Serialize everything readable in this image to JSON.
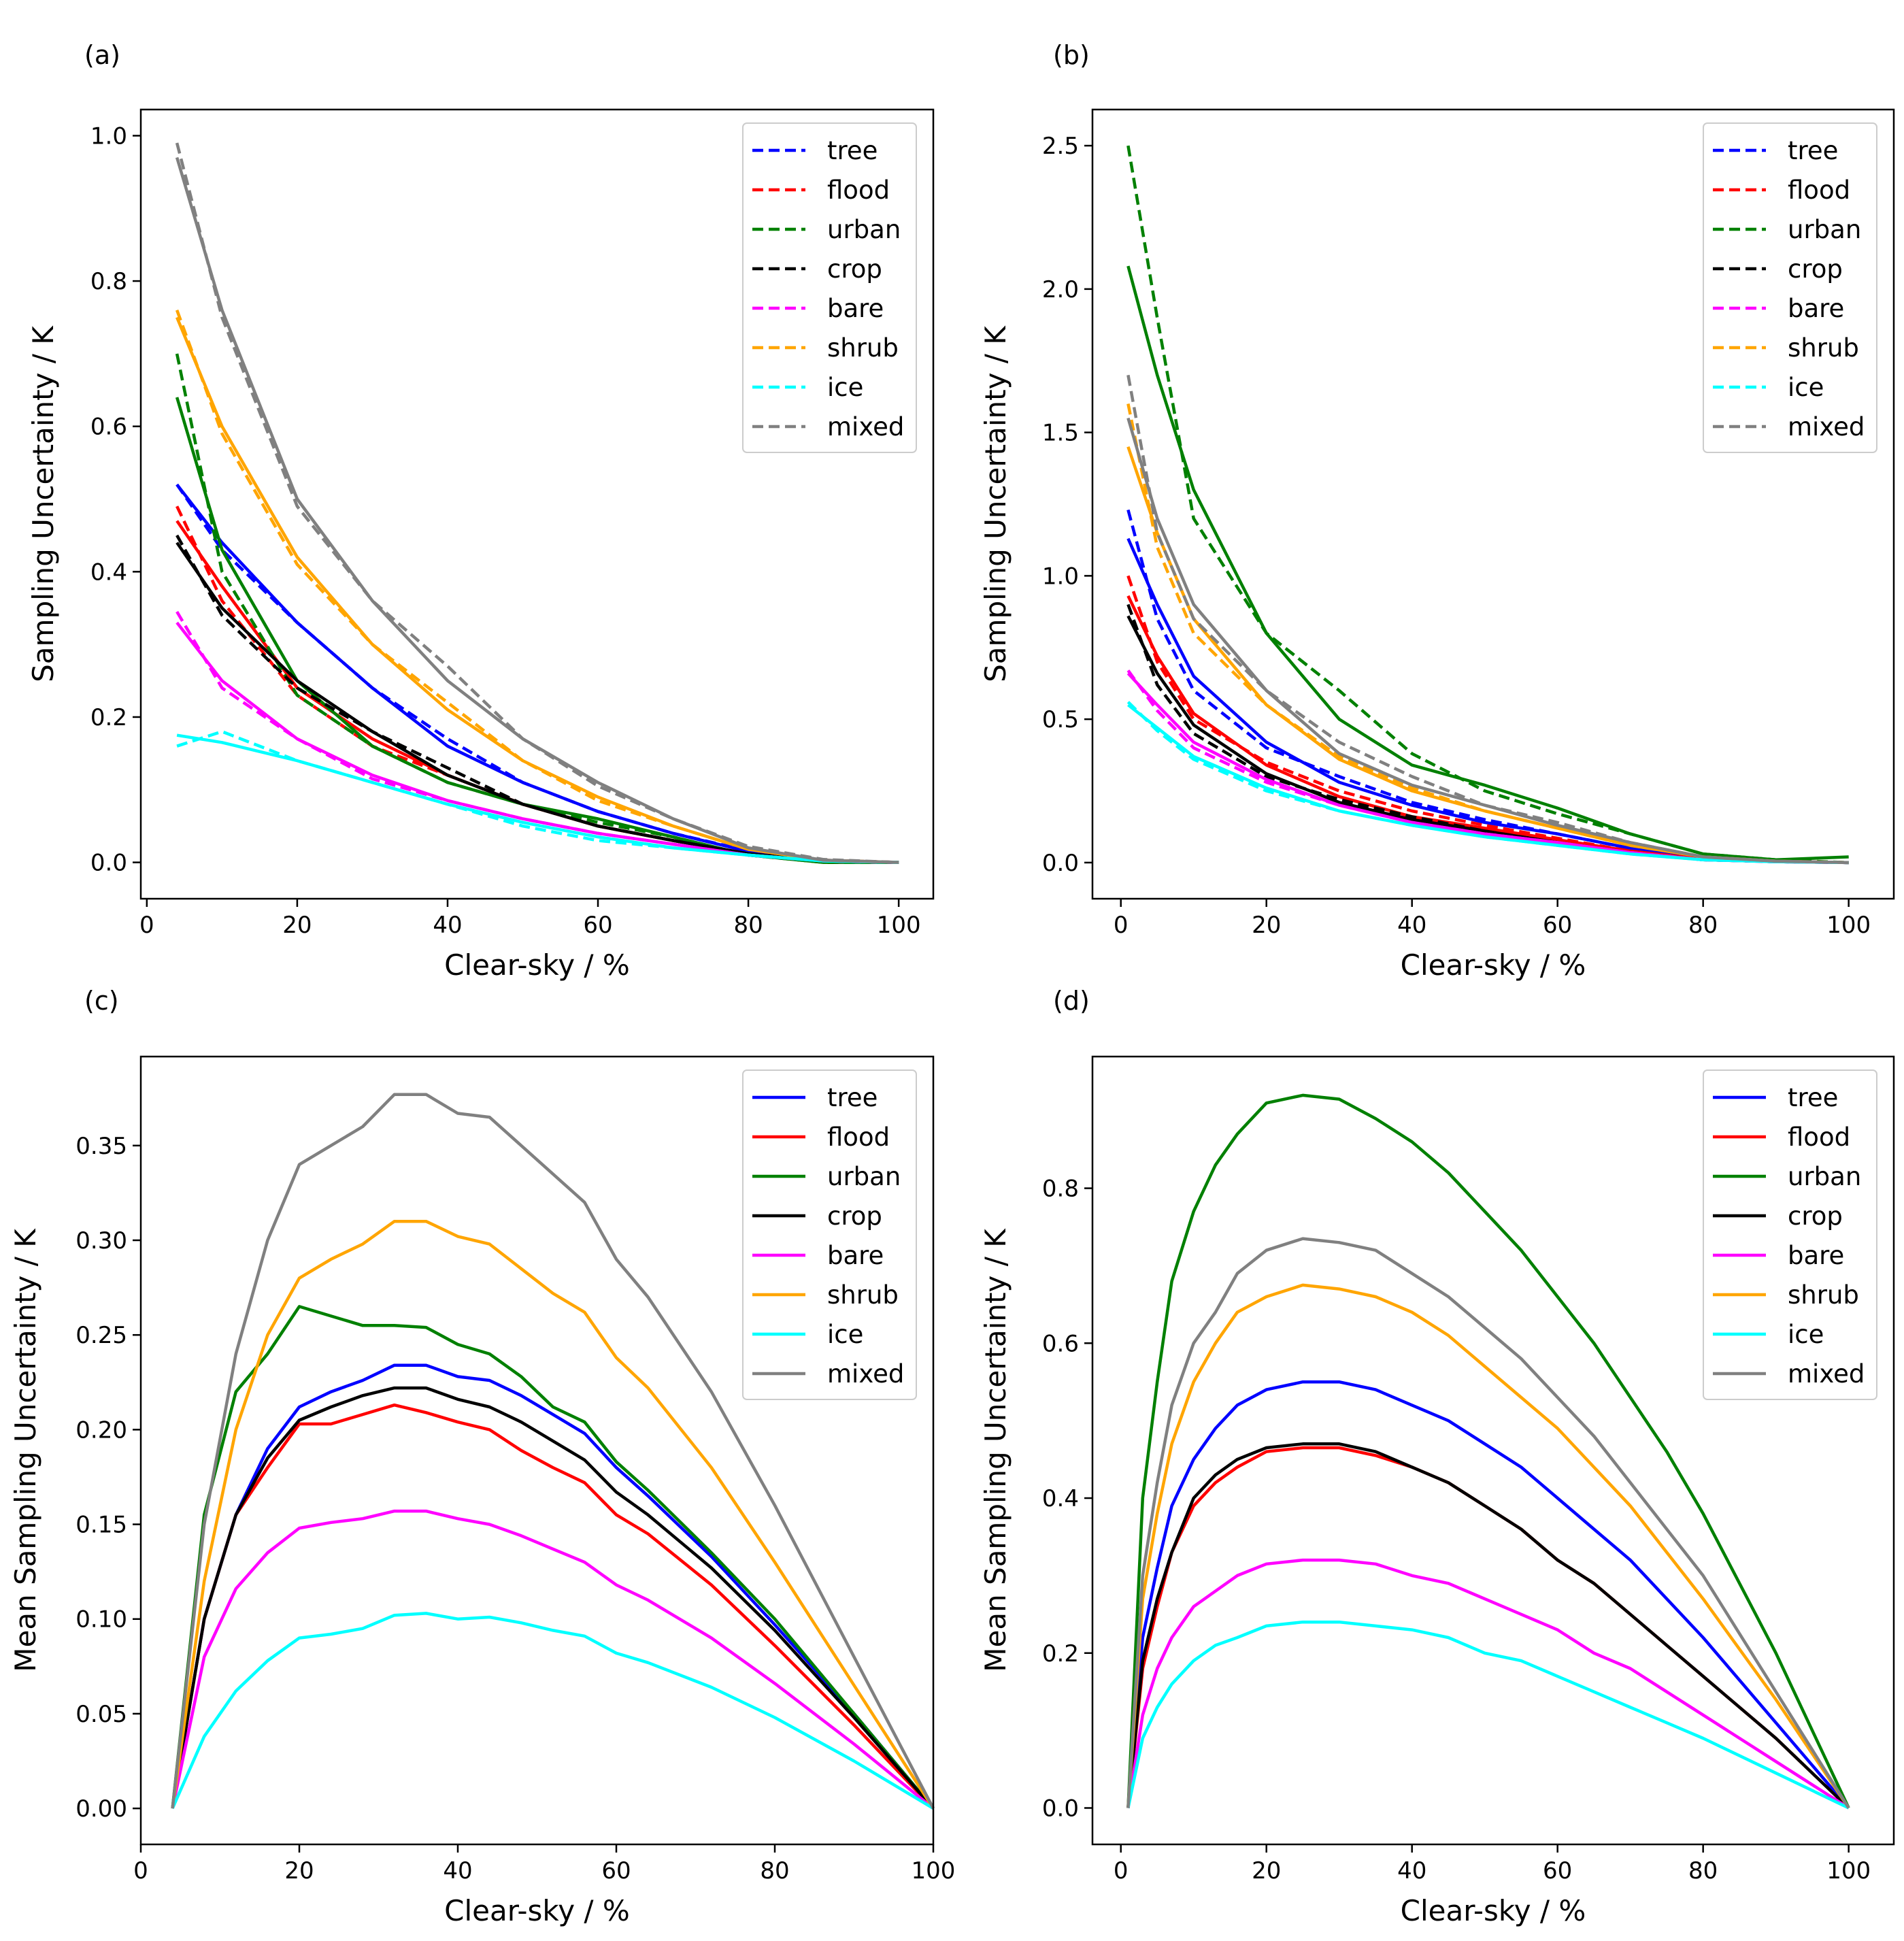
{
  "chart_data": [
    {
      "panel_label": "(a)",
      "type": "line",
      "xlabel": "Clear-sky / %",
      "ylabel": "Sampling Uncertainty / K",
      "xlim": [
        -0.8,
        104.6
      ],
      "ylim": [
        -0.05,
        1.036
      ],
      "xticks": [
        0,
        20,
        40,
        60,
        80,
        100
      ],
      "yticks": [
        0.0,
        0.2,
        0.4,
        0.6,
        0.8,
        1.0
      ],
      "ytick_decimals": 1,
      "legend_style": "dashed",
      "legend_position": "top-right",
      "x": [
        4,
        10,
        20,
        30,
        40,
        50,
        60,
        70,
        80,
        90,
        100
      ],
      "series": [
        {
          "name": "tree",
          "color": "#0000ff",
          "solid": [
            0.52,
            0.44,
            0.33,
            0.24,
            0.16,
            0.11,
            0.07,
            0.04,
            0.015,
            0.003,
            0
          ],
          "dashed": [
            0.52,
            0.43,
            0.33,
            0.24,
            0.17,
            0.11,
            0.07,
            0.04,
            0.016,
            0.003,
            0
          ]
        },
        {
          "name": "flood",
          "color": "#ff0000",
          "solid": [
            0.47,
            0.38,
            0.24,
            0.17,
            0.12,
            0.08,
            0.05,
            0.03,
            0.012,
            0.002,
            0
          ],
          "dashed": [
            0.49,
            0.36,
            0.23,
            0.16,
            0.12,
            0.08,
            0.05,
            0.03,
            0.012,
            0.002,
            0
          ]
        },
        {
          "name": "urban",
          "color": "#008000",
          "solid": [
            0.64,
            0.43,
            0.25,
            0.16,
            0.11,
            0.08,
            0.06,
            0.035,
            0.01,
            0.0,
            0
          ],
          "dashed": [
            0.7,
            0.4,
            0.23,
            0.16,
            0.11,
            0.08,
            0.055,
            0.035,
            0.01,
            0.0,
            0
          ]
        },
        {
          "name": "crop",
          "color": "#000000",
          "solid": [
            0.44,
            0.35,
            0.25,
            0.18,
            0.12,
            0.08,
            0.05,
            0.03,
            0.012,
            0.002,
            0
          ],
          "dashed": [
            0.45,
            0.34,
            0.24,
            0.18,
            0.13,
            0.08,
            0.05,
            0.03,
            0.012,
            0.002,
            0
          ]
        },
        {
          "name": "bare",
          "color": "#ff00ff",
          "solid": [
            0.33,
            0.25,
            0.17,
            0.12,
            0.085,
            0.06,
            0.04,
            0.025,
            0.01,
            0.002,
            0
          ],
          "dashed": [
            0.345,
            0.24,
            0.17,
            0.115,
            0.085,
            0.06,
            0.04,
            0.025,
            0.01,
            0.002,
            0
          ]
        },
        {
          "name": "shrub",
          "color": "#ffa500",
          "solid": [
            0.75,
            0.6,
            0.42,
            0.3,
            0.21,
            0.14,
            0.09,
            0.05,
            0.018,
            0.003,
            0
          ],
          "dashed": [
            0.76,
            0.59,
            0.41,
            0.3,
            0.22,
            0.14,
            0.085,
            0.05,
            0.018,
            0.003,
            0
          ]
        },
        {
          "name": "ice",
          "color": "#00ffff",
          "solid": [
            0.175,
            0.165,
            0.14,
            0.11,
            0.08,
            0.055,
            0.035,
            0.02,
            0.01,
            0.002,
            0
          ],
          "dashed": [
            0.16,
            0.18,
            0.14,
            0.11,
            0.08,
            0.05,
            0.03,
            0.02,
            0.01,
            0.002,
            0
          ]
        },
        {
          "name": "mixed",
          "color": "#808080",
          "solid": [
            0.97,
            0.76,
            0.5,
            0.36,
            0.25,
            0.17,
            0.11,
            0.06,
            0.02,
            0.003,
            0
          ],
          "dashed": [
            0.99,
            0.75,
            0.49,
            0.36,
            0.27,
            0.17,
            0.105,
            0.06,
            0.022,
            0.004,
            0
          ]
        }
      ]
    },
    {
      "panel_label": "(b)",
      "type": "line",
      "xlabel": "Clear-sky / %",
      "ylabel": "Sampling Uncertainty / K",
      "xlim": [
        -3.9,
        106.2
      ],
      "ylim": [
        -0.126,
        2.626
      ],
      "xticks": [
        0,
        20,
        40,
        60,
        80,
        100
      ],
      "yticks": [
        0.0,
        0.5,
        1.0,
        1.5,
        2.0,
        2.5
      ],
      "ytick_decimals": 1,
      "legend_style": "dashed",
      "legend_position": "top-right",
      "x": [
        1,
        5,
        10,
        20,
        30,
        40,
        50,
        60,
        70,
        80,
        90,
        100
      ],
      "series": [
        {
          "name": "tree",
          "color": "#0000ff",
          "solid": [
            1.13,
            0.9,
            0.65,
            0.42,
            0.28,
            0.2,
            0.14,
            0.1,
            0.05,
            0.015,
            0.005,
            0
          ],
          "dashed": [
            1.23,
            0.85,
            0.6,
            0.4,
            0.3,
            0.21,
            0.15,
            0.1,
            0.05,
            0.015,
            0.005,
            0
          ]
        },
        {
          "name": "flood",
          "color": "#ff0000",
          "solid": [
            0.93,
            0.72,
            0.52,
            0.34,
            0.23,
            0.16,
            0.12,
            0.08,
            0.04,
            0.012,
            0.004,
            0
          ],
          "dashed": [
            1.0,
            0.7,
            0.5,
            0.35,
            0.25,
            0.18,
            0.13,
            0.085,
            0.04,
            0.012,
            0.004,
            0
          ]
        },
        {
          "name": "urban",
          "color": "#008000",
          "solid": [
            2.08,
            1.7,
            1.3,
            0.8,
            0.5,
            0.34,
            0.27,
            0.19,
            0.1,
            0.03,
            0.01,
            0.02
          ],
          "dashed": [
            2.5,
            1.9,
            1.2,
            0.8,
            0.6,
            0.38,
            0.25,
            0.17,
            0.1,
            0.03,
            0.01,
            0
          ]
        },
        {
          "name": "crop",
          "color": "#000000",
          "solid": [
            0.86,
            0.66,
            0.48,
            0.31,
            0.21,
            0.15,
            0.11,
            0.07,
            0.035,
            0.01,
            0.003,
            0
          ],
          "dashed": [
            0.9,
            0.62,
            0.45,
            0.3,
            0.22,
            0.16,
            0.11,
            0.07,
            0.035,
            0.01,
            0.003,
            0
          ]
        },
        {
          "name": "bare",
          "color": "#ff00ff",
          "solid": [
            0.66,
            0.55,
            0.42,
            0.29,
            0.2,
            0.14,
            0.1,
            0.07,
            0.035,
            0.01,
            0.003,
            0
          ],
          "dashed": [
            0.67,
            0.53,
            0.4,
            0.28,
            0.2,
            0.14,
            0.1,
            0.07,
            0.035,
            0.01,
            0.003,
            0
          ]
        },
        {
          "name": "shrub",
          "color": "#ffa500",
          "solid": [
            1.45,
            1.15,
            0.85,
            0.55,
            0.36,
            0.25,
            0.18,
            0.12,
            0.06,
            0.02,
            0.005,
            0
          ],
          "dashed": [
            1.6,
            1.1,
            0.8,
            0.55,
            0.37,
            0.26,
            0.18,
            0.12,
            0.06,
            0.02,
            0.005,
            0
          ]
        },
        {
          "name": "ice",
          "color": "#00ffff",
          "solid": [
            0.55,
            0.47,
            0.37,
            0.26,
            0.18,
            0.13,
            0.09,
            0.06,
            0.03,
            0.01,
            0.003,
            0
          ],
          "dashed": [
            0.56,
            0.46,
            0.36,
            0.25,
            0.18,
            0.13,
            0.09,
            0.06,
            0.03,
            0.01,
            0.003,
            0
          ]
        },
        {
          "name": "mixed",
          "color": "#808080",
          "solid": [
            1.55,
            1.2,
            0.9,
            0.6,
            0.38,
            0.27,
            0.2,
            0.13,
            0.07,
            0.02,
            0.005,
            0
          ],
          "dashed": [
            1.7,
            1.15,
            0.85,
            0.6,
            0.42,
            0.3,
            0.2,
            0.14,
            0.07,
            0.02,
            0.005,
            0
          ]
        }
      ]
    },
    {
      "panel_label": "(c)",
      "type": "line",
      "xlabel": "Clear-sky / %",
      "ylabel": "Mean Sampling Uncertainty / K",
      "xlim": [
        0,
        100
      ],
      "ylim": [
        -0.019,
        0.397
      ],
      "xticks": [
        0,
        20,
        40,
        60,
        80,
        100
      ],
      "yticks": [
        0.0,
        0.05,
        0.1,
        0.15,
        0.2,
        0.25,
        0.3,
        0.35
      ],
      "ytick_decimals": 2,
      "legend_style": "solid",
      "legend_position": "top-right",
      "x": [
        4,
        8,
        12,
        16,
        20,
        24,
        28,
        32,
        36,
        40,
        44,
        48,
        52,
        56,
        60,
        64,
        72,
        80,
        90,
        100
      ],
      "series": [
        {
          "name": "tree",
          "color": "#0000ff",
          "solid": [
            0,
            0.1,
            0.155,
            0.19,
            0.212,
            0.22,
            0.226,
            0.234,
            0.234,
            0.228,
            0.226,
            0.218,
            0.208,
            0.198,
            0.18,
            0.165,
            0.133,
            0.097,
            0.05,
            0
          ]
        },
        {
          "name": "flood",
          "color": "#ff0000",
          "solid": [
            0,
            0.1,
            0.155,
            0.18,
            0.203,
            0.203,
            0.208,
            0.213,
            0.209,
            0.204,
            0.2,
            0.189,
            0.18,
            0.172,
            0.155,
            0.145,
            0.118,
            0.086,
            0.044,
            0
          ]
        },
        {
          "name": "urban",
          "color": "#008000",
          "solid": [
            0,
            0.155,
            0.22,
            0.24,
            0.265,
            0.26,
            0.255,
            0.255,
            0.254,
            0.245,
            0.24,
            0.228,
            0.212,
            0.204,
            0.183,
            0.168,
            0.135,
            0.1,
            0.05,
            0
          ]
        },
        {
          "name": "crop",
          "color": "#000000",
          "solid": [
            0,
            0.1,
            0.155,
            0.185,
            0.205,
            0.212,
            0.218,
            0.222,
            0.222,
            0.216,
            0.212,
            0.204,
            0.194,
            0.184,
            0.167,
            0.155,
            0.127,
            0.094,
            0.048,
            0
          ]
        },
        {
          "name": "bare",
          "color": "#ff00ff",
          "solid": [
            0,
            0.08,
            0.116,
            0.135,
            0.148,
            0.151,
            0.153,
            0.157,
            0.157,
            0.153,
            0.15,
            0.144,
            0.137,
            0.13,
            0.118,
            0.11,
            0.09,
            0.066,
            0.034,
            0
          ]
        },
        {
          "name": "shrub",
          "color": "#ffa500",
          "solid": [
            0,
            0.12,
            0.2,
            0.25,
            0.28,
            0.29,
            0.298,
            0.31,
            0.31,
            0.302,
            0.298,
            0.285,
            0.272,
            0.262,
            0.238,
            0.222,
            0.18,
            0.13,
            0.065,
            0
          ]
        },
        {
          "name": "ice",
          "color": "#00ffff",
          "solid": [
            0,
            0.038,
            0.062,
            0.078,
            0.09,
            0.092,
            0.095,
            0.102,
            0.103,
            0.1,
            0.101,
            0.098,
            0.094,
            0.091,
            0.082,
            0.077,
            0.064,
            0.048,
            0.025,
            0
          ]
        },
        {
          "name": "mixed",
          "color": "#808080",
          "solid": [
            0,
            0.15,
            0.24,
            0.3,
            0.34,
            0.35,
            0.36,
            0.377,
            0.377,
            0.367,
            0.365,
            0.35,
            0.335,
            0.32,
            0.29,
            0.27,
            0.22,
            0.16,
            0.08,
            0
          ]
        }
      ]
    },
    {
      "panel_label": "(d)",
      "type": "line",
      "xlabel": "Clear-sky / %",
      "ylabel": "Mean Sampling Uncertainty / K",
      "xlim": [
        -3.9,
        106.2
      ],
      "ylim": [
        -0.047,
        0.97
      ],
      "xticks": [
        0,
        20,
        40,
        60,
        80,
        100
      ],
      "yticks": [
        0.0,
        0.2,
        0.4,
        0.6,
        0.8
      ],
      "ytick_decimals": 1,
      "legend_style": "solid",
      "legend_position": "top-right",
      "x": [
        1,
        3,
        5,
        7,
        10,
        13,
        16,
        20,
        25,
        30,
        35,
        40,
        45,
        50,
        55,
        60,
        65,
        70,
        75,
        80,
        90,
        100
      ],
      "series": [
        {
          "name": "tree",
          "color": "#0000ff",
          "solid": [
            0,
            0.22,
            0.31,
            0.39,
            0.45,
            0.49,
            0.52,
            0.54,
            0.55,
            0.55,
            0.54,
            0.52,
            0.5,
            0.47,
            0.44,
            0.4,
            0.36,
            0.32,
            0.27,
            0.22,
            0.11,
            0
          ]
        },
        {
          "name": "flood",
          "color": "#ff0000",
          "solid": [
            0,
            0.18,
            0.26,
            0.33,
            0.39,
            0.42,
            0.44,
            0.46,
            0.465,
            0.465,
            0.455,
            0.44,
            0.42,
            0.39,
            0.36,
            0.32,
            0.29,
            0.25,
            0.21,
            0.17,
            0.09,
            0
          ]
        },
        {
          "name": "urban",
          "color": "#008000",
          "solid": [
            0,
            0.4,
            0.55,
            0.68,
            0.77,
            0.83,
            0.87,
            0.91,
            0.92,
            0.915,
            0.89,
            0.86,
            0.82,
            0.77,
            0.72,
            0.66,
            0.6,
            0.53,
            0.46,
            0.38,
            0.2,
            0
          ]
        },
        {
          "name": "crop",
          "color": "#000000",
          "solid": [
            0,
            0.19,
            0.27,
            0.33,
            0.4,
            0.43,
            0.45,
            0.465,
            0.47,
            0.47,
            0.46,
            0.44,
            0.42,
            0.39,
            0.36,
            0.32,
            0.29,
            0.25,
            0.21,
            0.17,
            0.09,
            0
          ]
        },
        {
          "name": "bare",
          "color": "#ff00ff",
          "solid": [
            0,
            0.12,
            0.18,
            0.22,
            0.26,
            0.28,
            0.3,
            0.315,
            0.32,
            0.32,
            0.315,
            0.3,
            0.29,
            0.27,
            0.25,
            0.23,
            0.2,
            0.18,
            0.15,
            0.12,
            0.06,
            0
          ]
        },
        {
          "name": "shrub",
          "color": "#ffa500",
          "solid": [
            0,
            0.27,
            0.38,
            0.47,
            0.55,
            0.6,
            0.64,
            0.66,
            0.675,
            0.67,
            0.66,
            0.64,
            0.61,
            0.57,
            0.53,
            0.49,
            0.44,
            0.39,
            0.33,
            0.27,
            0.14,
            0
          ]
        },
        {
          "name": "ice",
          "color": "#00ffff",
          "solid": [
            0,
            0.09,
            0.13,
            0.16,
            0.19,
            0.21,
            0.22,
            0.235,
            0.24,
            0.24,
            0.235,
            0.23,
            0.22,
            0.2,
            0.19,
            0.17,
            0.15,
            0.13,
            0.11,
            0.09,
            0.045,
            0
          ]
        },
        {
          "name": "mixed",
          "color": "#808080",
          "solid": [
            0,
            0.3,
            0.42,
            0.52,
            0.6,
            0.64,
            0.69,
            0.72,
            0.735,
            0.73,
            0.72,
            0.69,
            0.66,
            0.62,
            0.58,
            0.53,
            0.48,
            0.42,
            0.36,
            0.3,
            0.15,
            0
          ]
        }
      ]
    }
  ]
}
